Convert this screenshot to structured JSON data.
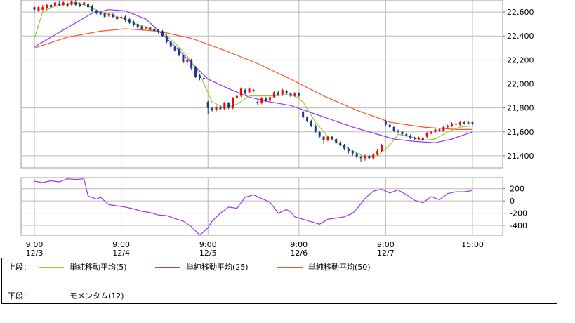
{
  "chart_data": [
    {
      "type": "candlestick",
      "panel": "upper",
      "ylim": [
        21300,
        22700
      ],
      "y_ticks": [
        21400,
        21600,
        21800,
        22000,
        22200,
        22400,
        22600
      ],
      "y_tick_labels": [
        "21,400",
        "21,600",
        "21,800",
        "22,000",
        "22,200",
        "22,400",
        "22,600"
      ],
      "grid": true,
      "colors": {
        "up": "#ff0000",
        "down": "#1b3a8c",
        "sma5": "#99cc33",
        "sma25": "#9933ff",
        "sma50": "#ff5522"
      },
      "candles": [
        [
          22640,
          22620,
          22650,
          22600
        ],
        [
          22610,
          22640,
          22650,
          22600
        ],
        [
          22620,
          22640,
          22660,
          22610
        ],
        [
          22630,
          22660,
          22670,
          22620
        ],
        [
          22660,
          22640,
          22670,
          22630
        ],
        [
          22650,
          22680,
          22690,
          22640
        ],
        [
          22670,
          22660,
          22690,
          22650
        ],
        [
          22660,
          22680,
          22690,
          22650
        ],
        [
          22670,
          22650,
          22680,
          22640
        ],
        [
          22660,
          22690,
          22700,
          22650
        ],
        [
          22680,
          22660,
          22700,
          22650
        ],
        [
          22670,
          22650,
          22680,
          22640
        ],
        [
          22660,
          22680,
          22690,
          22650
        ],
        [
          22670,
          22640,
          22680,
          22630
        ],
        [
          22650,
          22610,
          22660,
          22600
        ],
        [
          22610,
          22590,
          22620,
          22580
        ],
        [
          22600,
          22580,
          22610,
          22570
        ],
        [
          22590,
          22560,
          22600,
          22550
        ],
        [
          22570,
          22580,
          22590,
          22560
        ],
        [
          22580,
          22560,
          22590,
          22550
        ],
        [
          22560,
          22540,
          22570,
          22530
        ],
        [
          22550,
          22560,
          22570,
          22540
        ],
        [
          22560,
          22530,
          22570,
          22520
        ],
        [
          22540,
          22510,
          22550,
          22500
        ],
        [
          22520,
          22490,
          22530,
          22480
        ],
        [
          22500,
          22470,
          22510,
          22460
        ],
        [
          22480,
          22460,
          22490,
          22450
        ],
        [
          22470,
          22470,
          22480,
          22460
        ],
        [
          22470,
          22450,
          22480,
          22440
        ],
        [
          22460,
          22440,
          22470,
          22430
        ],
        [
          22450,
          22430,
          22460,
          22420
        ],
        [
          22440,
          22400,
          22450,
          22390
        ],
        [
          22400,
          22350,
          22410,
          22340
        ],
        [
          22350,
          22310,
          22360,
          22300
        ],
        [
          22310,
          22280,
          22320,
          22270
        ],
        [
          22290,
          22240,
          22300,
          22230
        ],
        [
          22240,
          22180,
          22250,
          22170
        ],
        [
          22180,
          22200,
          22210,
          22160
        ],
        [
          22200,
          22130,
          22210,
          22120
        ],
        [
          22140,
          22060,
          22150,
          22050
        ],
        [
          22070,
          22050,
          22080,
          22030
        ],
        [
          22050,
          22040,
          22060,
          22030
        ],
        [
          21850,
          21800,
          21860,
          21750
        ],
        [
          21800,
          21780,
          21810,
          21770
        ],
        [
          21780,
          21810,
          21820,
          21770
        ],
        [
          21810,
          21790,
          21820,
          21780
        ],
        [
          21790,
          21840,
          21850,
          21780
        ],
        [
          21840,
          21800,
          21850,
          21790
        ],
        [
          21800,
          21880,
          21890,
          21790
        ],
        [
          21880,
          21900,
          21910,
          21870
        ],
        [
          21900,
          21960,
          21970,
          21890
        ],
        [
          21950,
          21920,
          21960,
          21910
        ],
        [
          21930,
          21960,
          21970,
          21920
        ],
        [
          21950,
          21940,
          21960,
          21930
        ],
        [
          21850,
          21840,
          21860,
          21820
        ],
        [
          21840,
          21880,
          21890,
          21830
        ],
        [
          21880,
          21860,
          21890,
          21850
        ],
        [
          21860,
          21890,
          21900,
          21850
        ],
        [
          21890,
          21930,
          21940,
          21880
        ],
        [
          21930,
          21910,
          21940,
          21900
        ],
        [
          21910,
          21950,
          21960,
          21900
        ],
        [
          21940,
          21920,
          21950,
          21910
        ],
        [
          21920,
          21900,
          21930,
          21890
        ],
        [
          21900,
          21920,
          21930,
          21890
        ],
        [
          21920,
          21900,
          21930,
          21890
        ],
        [
          21770,
          21720,
          21780,
          21700
        ],
        [
          21720,
          21690,
          21730,
          21680
        ],
        [
          21690,
          21650,
          21700,
          21640
        ],
        [
          21650,
          21600,
          21660,
          21590
        ],
        [
          21600,
          21560,
          21610,
          21550
        ],
        [
          21560,
          21530,
          21570,
          21500
        ],
        [
          21530,
          21560,
          21570,
          21520
        ],
        [
          21560,
          21540,
          21570,
          21530
        ],
        [
          21540,
          21510,
          21550,
          21500
        ],
        [
          21510,
          21490,
          21520,
          21480
        ],
        [
          21490,
          21460,
          21500,
          21450
        ],
        [
          21460,
          21440,
          21470,
          21420
        ],
        [
          21440,
          21420,
          21450,
          21400
        ],
        [
          21420,
          21390,
          21430,
          21370
        ],
        [
          21390,
          21380,
          21400,
          21350
        ],
        [
          21380,
          21400,
          21410,
          21360
        ],
        [
          21400,
          21380,
          21410,
          21370
        ],
        [
          21380,
          21410,
          21420,
          21370
        ],
        [
          21410,
          21440,
          21460,
          21400
        ],
        [
          21440,
          21490,
          21500,
          21430
        ],
        [
          21690,
          21660,
          21700,
          21650
        ],
        [
          21660,
          21640,
          21670,
          21630
        ],
        [
          21640,
          21610,
          21650,
          21600
        ],
        [
          21610,
          21600,
          21620,
          21590
        ],
        [
          21600,
          21580,
          21610,
          21570
        ],
        [
          21580,
          21570,
          21590,
          21560
        ],
        [
          21570,
          21550,
          21580,
          21540
        ],
        [
          21550,
          21540,
          21560,
          21530
        ],
        [
          21540,
          21550,
          21560,
          21530
        ],
        [
          21550,
          21530,
          21560,
          21520
        ],
        [
          21560,
          21590,
          21600,
          21550
        ],
        [
          21590,
          21600,
          21610,
          21580
        ],
        [
          21600,
          21620,
          21630,
          21590
        ],
        [
          21620,
          21610,
          21630,
          21600
        ],
        [
          21610,
          21640,
          21650,
          21600
        ],
        [
          21640,
          21650,
          21660,
          21630
        ],
        [
          21650,
          21670,
          21680,
          21640
        ],
        [
          21670,
          21660,
          21680,
          21650
        ],
        [
          21660,
          21680,
          21690,
          21650
        ],
        [
          21680,
          21670,
          21690,
          21660
        ],
        [
          21670,
          21680,
          21690,
          21660
        ],
        [
          21680,
          21670,
          21690,
          21650
        ]
      ],
      "series": [
        {
          "name": "単純移動平均(5)",
          "x": [
            0,
            2,
            5,
            8,
            10,
            13,
            16,
            19,
            22,
            25,
            28,
            31,
            34,
            37,
            40,
            43,
            46,
            49,
            52,
            55,
            58,
            61,
            63,
            65,
            68,
            71,
            74,
            77,
            80,
            83,
            86,
            88,
            91,
            94,
            97,
            100,
            103,
            106
          ],
          "y": [
            22380,
            22600,
            22650,
            22670,
            22680,
            22650,
            22600,
            22570,
            22540,
            22490,
            22460,
            22430,
            22340,
            22230,
            22080,
            21850,
            21800,
            21830,
            21900,
            21900,
            21900,
            21910,
            21900,
            21850,
            21680,
            21560,
            21500,
            21440,
            21390,
            21400,
            21490,
            21580,
            21560,
            21530,
            21540,
            21600,
            21640,
            21650
          ]
        },
        {
          "name": "単純移動平均(25)",
          "x": [
            0,
            8,
            14,
            18,
            22,
            27,
            32,
            37,
            42,
            47,
            52,
            57,
            62,
            67,
            72,
            77,
            82,
            87,
            92,
            97,
            101,
            106
          ],
          "y": [
            22310,
            22470,
            22590,
            22620,
            22610,
            22540,
            22380,
            22210,
            22040,
            21960,
            21890,
            21850,
            21820,
            21760,
            21700,
            21640,
            21590,
            21540,
            21520,
            21510,
            21540,
            21600
          ]
        },
        {
          "name": "単純移動平均(50)",
          "x": [
            0,
            8,
            16,
            22,
            30,
            38,
            46,
            54,
            62,
            70,
            78,
            86,
            94,
            102,
            106
          ],
          "y": [
            22300,
            22390,
            22440,
            22460,
            22440,
            22380,
            22280,
            22170,
            22040,
            21900,
            21780,
            21680,
            21640,
            21620,
            21620
          ]
        }
      ]
    },
    {
      "type": "line",
      "panel": "lower",
      "ylim": [
        -560,
        380
      ],
      "y_ticks": [
        200,
        0,
        -200,
        -400
      ],
      "y_tick_labels": [
        "200",
        "0",
        "-200",
        "-400"
      ],
      "grid": true,
      "series": [
        {
          "name": "モメンタム(12)",
          "x": [
            0,
            2,
            4,
            6,
            8,
            10,
            12,
            13,
            15,
            16,
            18,
            20,
            22,
            24,
            26,
            28,
            30,
            32,
            34,
            36,
            38,
            40,
            42,
            43,
            45,
            47,
            49,
            51,
            53,
            55,
            57,
            59,
            61,
            62,
            63,
            65,
            67,
            69,
            71,
            73,
            75,
            77,
            78,
            80,
            82,
            84,
            86,
            88,
            90,
            92,
            94,
            96,
            98,
            100,
            102,
            104,
            106
          ],
          "y": [
            320,
            300,
            330,
            310,
            360,
            350,
            360,
            80,
            30,
            60,
            -60,
            -80,
            -100,
            -130,
            -170,
            -190,
            -230,
            -240,
            -290,
            -330,
            -420,
            -560,
            -440,
            -330,
            -200,
            -100,
            -120,
            60,
            100,
            40,
            -20,
            -200,
            -140,
            -180,
            -260,
            -300,
            -340,
            -380,
            -300,
            -280,
            -260,
            -200,
            -130,
            40,
            160,
            190,
            130,
            180,
            100,
            10,
            -30,
            70,
            20,
            120,
            150,
            150,
            170
          ]
        }
      ]
    }
  ],
  "x_axis": {
    "tick_index": [
      0,
      21,
      42,
      64,
      85,
      106
    ],
    "labels": [
      {
        "time": "9:00",
        "date": "12/3"
      },
      {
        "time": "9:00",
        "date": "12/4"
      },
      {
        "time": "9:00",
        "date": "12/5"
      },
      {
        "time": "9:00",
        "date": "12/6"
      },
      {
        "time": "9:00",
        "date": "12/7"
      },
      {
        "time": "15:00",
        "date": ""
      }
    ]
  },
  "legend": {
    "upper_label": "上段：",
    "lower_label": "下段：",
    "upper_items": [
      {
        "label": "単純移動平均(5)",
        "color": "#99cc33"
      },
      {
        "label": "単純移動平均(25)",
        "color": "#9933ff"
      },
      {
        "label": "単純移動平均(50)",
        "color": "#ff5522"
      }
    ],
    "lower_items": [
      {
        "label": "モメンタム(12)",
        "color": "#9933ff"
      }
    ]
  }
}
